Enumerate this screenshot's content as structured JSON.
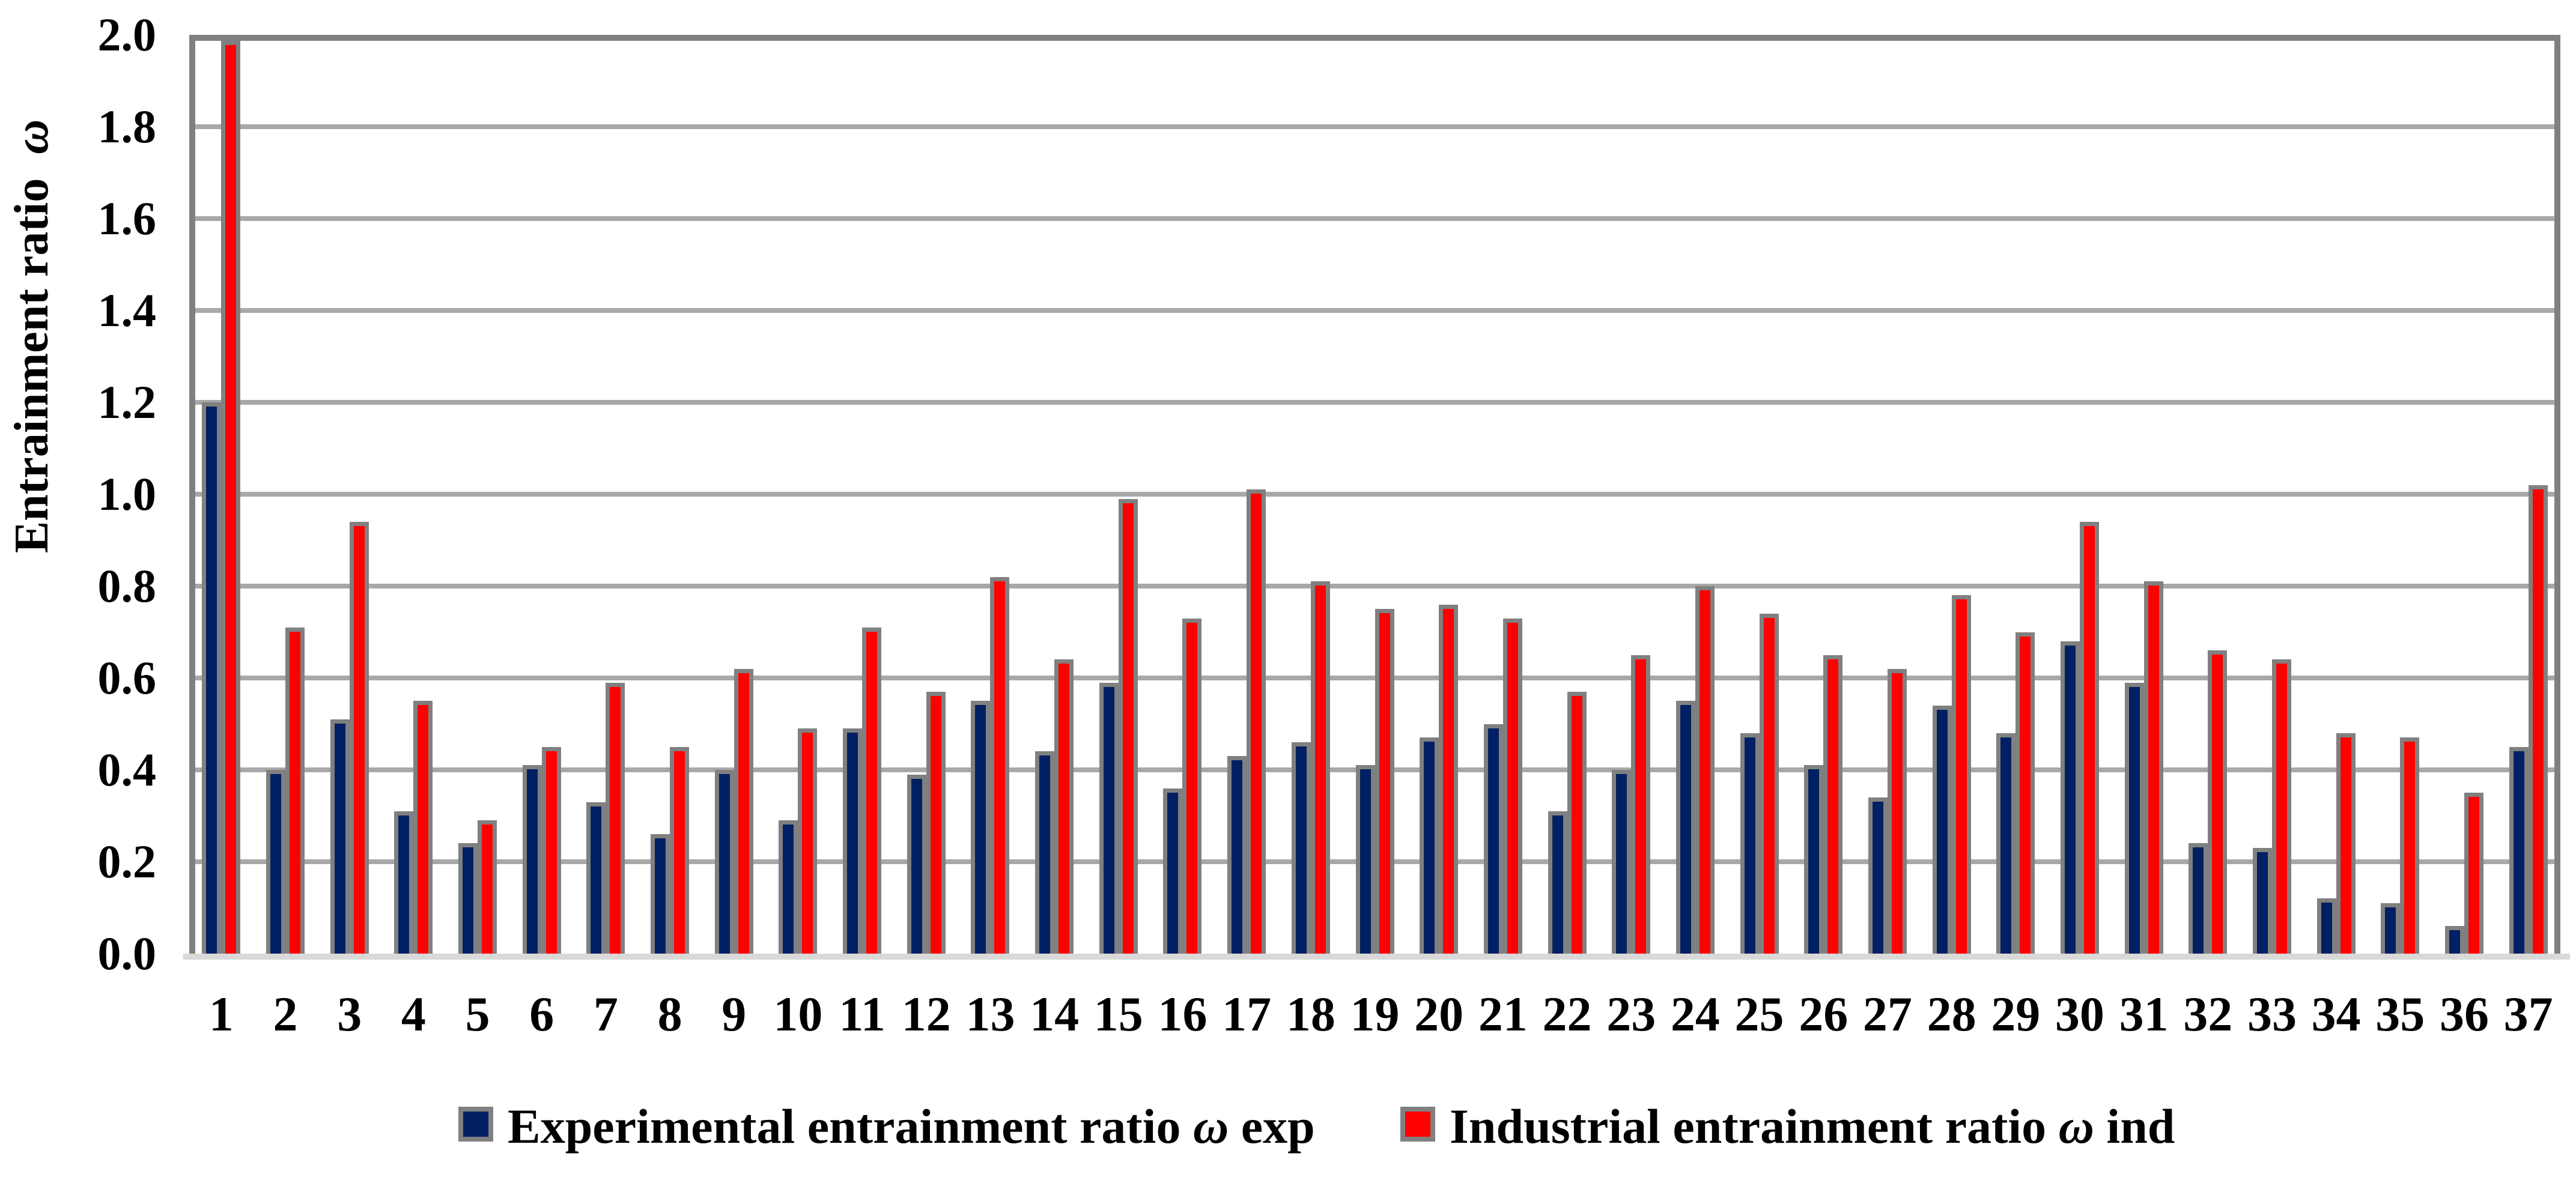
{
  "chart_data": {
    "type": "bar",
    "title": "",
    "xlabel": "",
    "ylabel": "Entrainment ratio ω",
    "ylim": [
      0.0,
      2.0
    ],
    "ytick_step": 0.2,
    "yticks": [
      "0.0",
      "0.2",
      "0.4",
      "0.6",
      "0.8",
      "1.0",
      "1.2",
      "1.4",
      "1.6",
      "1.8",
      "2.0"
    ],
    "grid": true,
    "legend_position": "bottom",
    "categories": [
      "1",
      "2",
      "3",
      "4",
      "5",
      "6",
      "7",
      "8",
      "9",
      "10",
      "11",
      "12",
      "13",
      "14",
      "15",
      "16",
      "17",
      "18",
      "19",
      "20",
      "21",
      "22",
      "23",
      "24",
      "25",
      "26",
      "27",
      "28",
      "29",
      "30",
      "31",
      "32",
      "33",
      "34",
      "35",
      "36",
      "37"
    ],
    "series": [
      {
        "name": "Experimental entrainment ratio ω exp",
        "color": "#002063",
        "values": [
          1.2,
          0.4,
          0.51,
          0.31,
          0.24,
          0.41,
          0.33,
          0.26,
          0.4,
          0.29,
          0.49,
          0.39,
          0.55,
          0.44,
          0.59,
          0.36,
          0.43,
          0.46,
          0.41,
          0.47,
          0.5,
          0.31,
          0.4,
          0.55,
          0.48,
          0.41,
          0.34,
          0.54,
          0.48,
          0.68,
          0.59,
          0.24,
          0.23,
          0.12,
          0.11,
          0.06,
          0.45
        ]
      },
      {
        "name": "Industrial entrainment ratio ω ind",
        "color": "#FF0000",
        "values": [
          2.0,
          0.71,
          0.94,
          0.55,
          0.29,
          0.45,
          0.59,
          0.45,
          0.62,
          0.49,
          0.71,
          0.57,
          0.82,
          0.64,
          0.99,
          0.73,
          1.01,
          0.81,
          0.75,
          0.76,
          0.73,
          0.57,
          0.65,
          0.8,
          0.74,
          0.65,
          0.62,
          0.78,
          0.7,
          0.94,
          0.81,
          0.66,
          0.64,
          0.48,
          0.47,
          0.35,
          1.02
        ]
      }
    ],
    "styles": {
      "bar_outline": "#808080",
      "gridline_color": "#A8A8A8",
      "axis_frame_color": "#808080",
      "baseline_color": "#D9D9D9",
      "background": "#FFFFFF"
    }
  }
}
